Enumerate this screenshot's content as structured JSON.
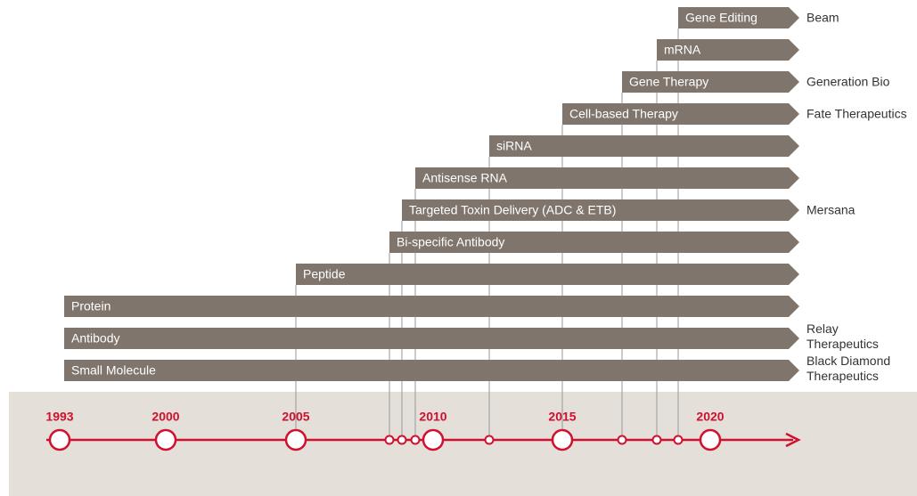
{
  "timeline": {
    "years": [
      "1993",
      "2000",
      "2005",
      "2010",
      "2015",
      "2020"
    ]
  },
  "bars": [
    {
      "label": "Gene Editing",
      "company": [
        "Beam"
      ]
    },
    {
      "label": "mRNA",
      "company": []
    },
    {
      "label": "Gene Therapy",
      "company": [
        "Generation Bio"
      ]
    },
    {
      "label": "Cell-based Therapy",
      "company": [
        "Fate Therapeutics"
      ]
    },
    {
      "label": "siRNA",
      "company": []
    },
    {
      "label": "Antisense RNA",
      "company": []
    },
    {
      "label": "Targeted Toxin Delivery (ADC & ETB)",
      "company": [
        "Mersana"
      ]
    },
    {
      "label": "Bi-specific Antibody",
      "company": []
    },
    {
      "label": "Peptide",
      "company": []
    },
    {
      "label": "Protein",
      "company": []
    },
    {
      "label": "Antibody",
      "company": [
        "Relay",
        "Therapeutics"
      ]
    },
    {
      "label": "Small Molecule",
      "company": [
        "Black Diamond",
        "Therapeutics"
      ]
    }
  ]
}
